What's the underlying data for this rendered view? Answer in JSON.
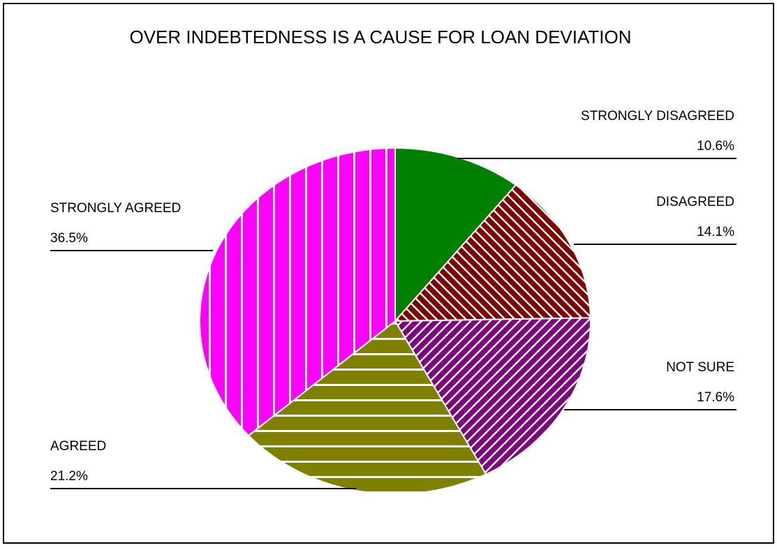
{
  "chart_data": {
    "type": "pie",
    "title": "OVER INDEBTEDNESS IS A CAUSE FOR LOAN DEVIATION",
    "unit": "%",
    "slices": [
      {
        "label": "STRONGLY DISAGREED",
        "value": 10.6,
        "value_label": "10.6%",
        "color": "#008000",
        "pattern": "solid"
      },
      {
        "label": "DISAGREED",
        "value": 14.1,
        "value_label": "14.1%",
        "color": "#800000",
        "pattern": "diagonal-down"
      },
      {
        "label": "NOT SURE",
        "value": 17.6,
        "value_label": "17.6%",
        "color": "#800080",
        "pattern": "diagonal-up"
      },
      {
        "label": "AGREED",
        "value": 21.2,
        "value_label": "21.2%",
        "color": "#808000",
        "pattern": "horizontal"
      },
      {
        "label": "STRONGLY AGREED",
        "value": 36.5,
        "value_label": "36.5%",
        "color": "#ff00ff",
        "pattern": "vertical"
      }
    ],
    "start": "top, clockwise",
    "legend": "none"
  }
}
